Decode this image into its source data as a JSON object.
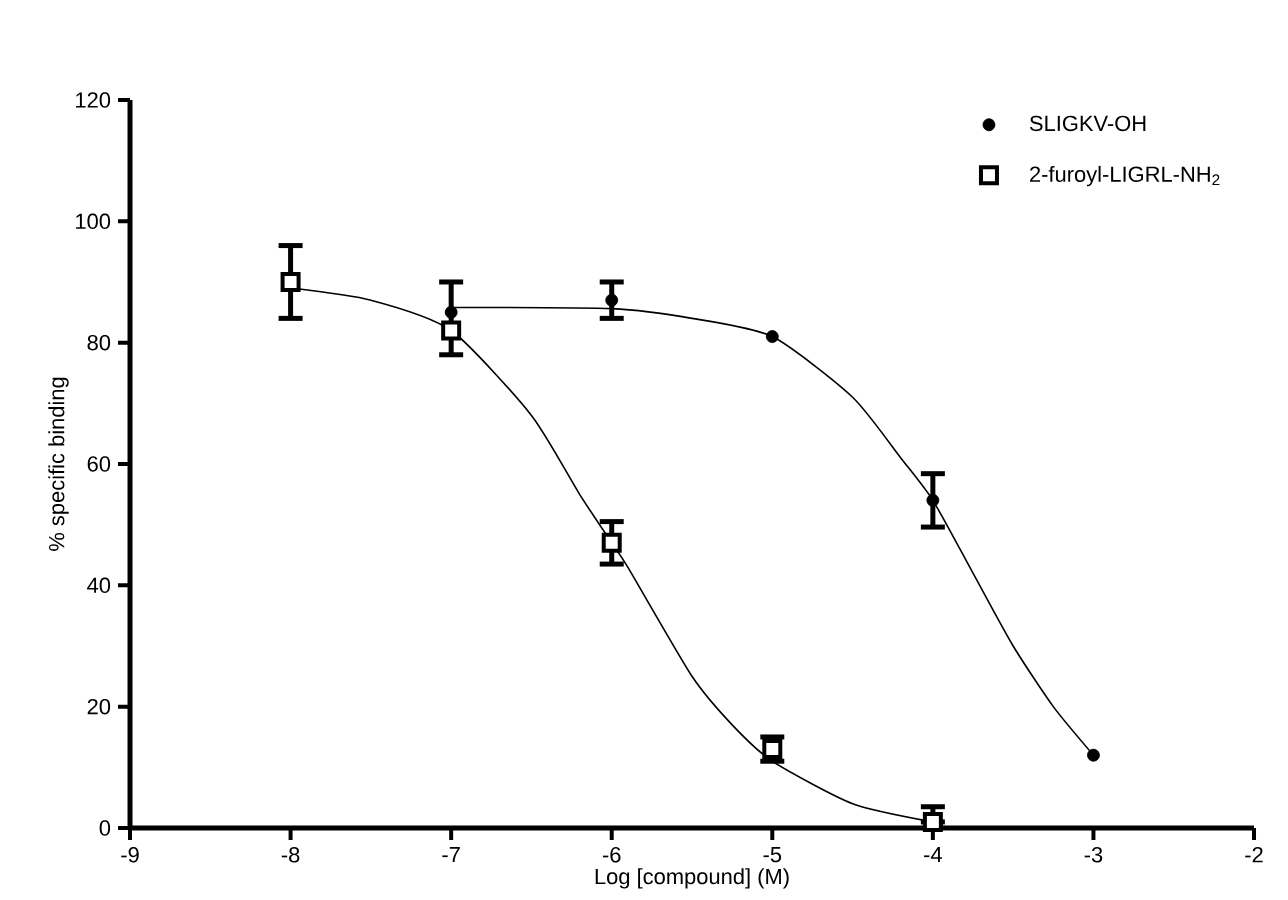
{
  "chart_data": {
    "type": "scatter",
    "xlabel": "Log [compound] (M)",
    "ylabel": "% specific binding",
    "xlim": [
      -9,
      -2
    ],
    "xticks": [
      -9,
      -8,
      -7,
      -6,
      -5,
      -4,
      -3,
      -2
    ],
    "ylim": [
      0,
      120
    ],
    "yticks": [
      0,
      20,
      40,
      60,
      80,
      100,
      120
    ],
    "legend": "top right",
    "grid": false,
    "series": [
      {
        "name": "SLIGKV-OH",
        "marker": "circle",
        "color": "#000000",
        "x": [
          -7,
          -6,
          -5,
          -4,
          -3
        ],
        "values": [
          85,
          87,
          81,
          54,
          12
        ],
        "errors": [
          null,
          3,
          null,
          4.4,
          null
        ]
      },
      {
        "name": "2-furoyl-LIGRL-NH$_{2}$",
        "marker": "square",
        "color": "#000000",
        "x": [
          -8,
          -7,
          -6,
          -5,
          -4
        ],
        "values": [
          90,
          82,
          47,
          13,
          1
        ],
        "errors": [
          6,
          [
            78,
            90
          ],
          3.5,
          2,
          [
            1,
            3.5
          ]
        ]
      },
      {
        "type": "line",
        "marker": "none",
        "color": "#000000",
        "x": [
          -7,
          -6,
          -5.5,
          -5,
          -4.5,
          -4.2,
          -4,
          -3.75,
          -3.5,
          -3.25,
          -3
        ],
        "values": [
          85.8,
          85.6,
          84,
          81,
          71,
          61,
          54,
          42,
          30,
          20,
          12
        ]
      },
      {
        "type": "line",
        "marker": "none",
        "color": "#000000",
        "x": [
          -8,
          -7.5,
          -7,
          -6.5,
          -6.2,
          -6,
          -5.9,
          -5.5,
          -5.25,
          -5,
          -4.5,
          -4
        ],
        "values": [
          89,
          87,
          82,
          68,
          55,
          47,
          43,
          25,
          17,
          11,
          4,
          1
        ]
      }
    ]
  }
}
